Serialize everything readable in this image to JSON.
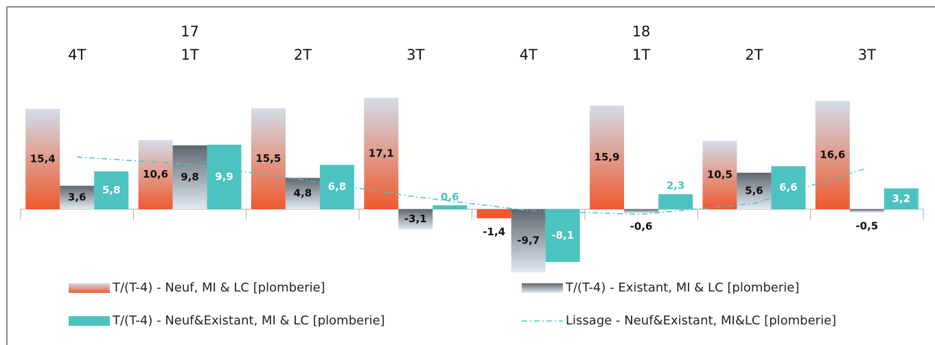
{
  "chart_data": {
    "type": "bar",
    "categories": [
      "4T",
      "1T",
      "2T",
      "3T",
      "4T",
      "1T",
      "2T",
      "3T"
    ],
    "year_labels": [
      null,
      "17",
      null,
      null,
      null,
      "18",
      null,
      null
    ],
    "ylim": [
      -10,
      20
    ],
    "grid": false,
    "legend": "bottom",
    "series": [
      {
        "name": "T/(T-4) - Neuf, MI & LC  [plomberie]",
        "color": "#ee5a2e",
        "values": [
          15.4,
          10.6,
          15.5,
          17.1,
          -1.4,
          15.9,
          10.5,
          16.6
        ],
        "value_labels": [
          "15,4",
          "10,6",
          "15,5",
          "17,1",
          "-1,4",
          "15,9",
          "10,5",
          "16,6"
        ]
      },
      {
        "name": "T/(T-4) - Existant, MI & LC  [plomberie]",
        "color": "#5e666f",
        "values": [
          3.6,
          9.8,
          4.8,
          -3.1,
          -9.7,
          -0.6,
          5.6,
          -0.5
        ],
        "value_labels": [
          "3,6",
          "9,8",
          "4,8",
          "-3,1",
          "-9,7",
          "-0,6",
          "5,6",
          "-0,5"
        ]
      },
      {
        "name": "T/(T-4) - Neuf&Existant, MI & LC  [plomberie]",
        "color": "#4cc3c0",
        "values": [
          5.8,
          9.9,
          6.8,
          0.6,
          -8.1,
          2.3,
          6.6,
          3.2
        ],
        "value_labels": [
          "5,8",
          "9,9",
          "6,8",
          "0,6",
          "-8,1",
          "2,3",
          "6,6",
          "3,2"
        ]
      },
      {
        "name": "Lissage - Neuf&Existant, MI&LC [plomberie]",
        "color": "#4cc3c0",
        "type": "line",
        "dashed": true,
        "values": [
          8.0,
          6.9,
          4.5,
          1.9,
          -0.2,
          -0.8,
          0.9,
          6.3
        ]
      }
    ]
  }
}
